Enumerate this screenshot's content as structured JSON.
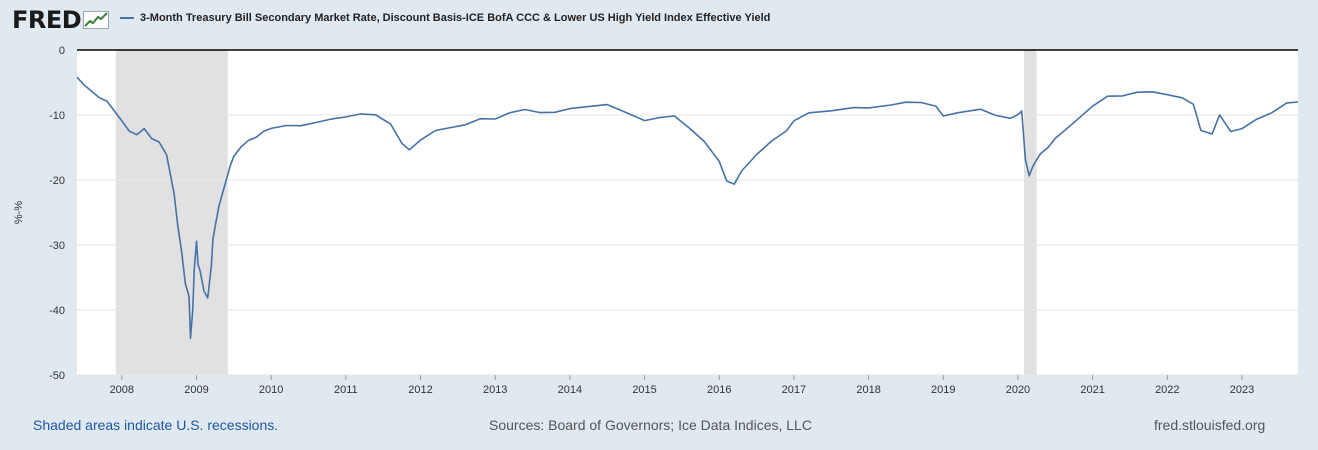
{
  "logo": {
    "text": "FRED"
  },
  "legend": {
    "label": "3-Month Treasury Bill Secondary Market Rate, Discount Basis-ICE BofA CCC & Lower US High Yield Index Effective Yield"
  },
  "footer": {
    "recessions_note": "Shaded areas indicate U.S. recessions.",
    "sources": "Sources: Board of Governors; Ice Data Indices, LLC",
    "site": "fred.stlouisfed.org"
  },
  "colors": {
    "line": "#4572a7",
    "recession": "#e1e1e1",
    "background": "#e1e9f0",
    "plot": "#ffffff",
    "grid": "#e6e6e6"
  },
  "chart_data": {
    "type": "line",
    "title": "3-Month Treasury Bill Secondary Market Rate, Discount Basis-ICE BofA CCC & Lower US High Yield Index Effective Yield",
    "xlabel": "",
    "ylabel": "%-%",
    "xlim": [
      2007.4,
      2023.75
    ],
    "ylim": [
      -50,
      0
    ],
    "yticks": [
      0,
      -10,
      -20,
      -30,
      -40,
      -50
    ],
    "ytick_labels": [
      "0",
      "-10",
      "-20",
      "-30",
      "-40",
      "-50"
    ],
    "xticks": [
      2008,
      2009,
      2010,
      2011,
      2012,
      2013,
      2014,
      2015,
      2016,
      2017,
      2018,
      2019,
      2020,
      2021,
      2022,
      2023
    ],
    "xtick_labels": [
      "2008",
      "2009",
      "2010",
      "2011",
      "2012",
      "2013",
      "2014",
      "2015",
      "2016",
      "2017",
      "2018",
      "2019",
      "2020",
      "2021",
      "2022",
      "2023"
    ],
    "recessions": [
      [
        2007.92,
        2009.42
      ],
      [
        2020.08,
        2020.25
      ]
    ],
    "grid": true,
    "series": [
      {
        "name": "3-Month Treasury Bill Secondary Market Rate, Discount Basis-ICE BofA CCC & Lower US High Yield Index Effective Yield",
        "x": [
          2007.4,
          2007.5,
          2007.6,
          2007.7,
          2007.8,
          2007.9,
          2008.0,
          2008.1,
          2008.2,
          2008.3,
          2008.4,
          2008.5,
          2008.6,
          2008.7,
          2008.75,
          2008.8,
          2008.85,
          2008.9,
          2008.92,
          2008.95,
          2008.97,
          2009.0,
          2009.02,
          2009.05,
          2009.1,
          2009.15,
          2009.2,
          2009.22,
          2009.25,
          2009.3,
          2009.35,
          2009.4,
          2009.45,
          2009.5,
          2009.6,
          2009.7,
          2009.8,
          2009.9,
          2010.0,
          2010.2,
          2010.4,
          2010.6,
          2010.8,
          2011.0,
          2011.2,
          2011.4,
          2011.6,
          2011.75,
          2011.85,
          2012.0,
          2012.2,
          2012.4,
          2012.6,
          2012.8,
          2013.0,
          2013.2,
          2013.4,
          2013.6,
          2013.8,
          2014.0,
          2014.2,
          2014.5,
          2014.7,
          2014.9,
          2015.0,
          2015.2,
          2015.4,
          2015.6,
          2015.8,
          2016.0,
          2016.1,
          2016.2,
          2016.3,
          2016.5,
          2016.7,
          2016.9,
          2017.0,
          2017.2,
          2017.5,
          2017.8,
          2018.0,
          2018.3,
          2018.5,
          2018.7,
          2018.9,
          2019.0,
          2019.2,
          2019.5,
          2019.7,
          2019.9,
          2020.0,
          2020.05,
          2020.1,
          2020.15,
          2020.2,
          2020.25,
          2020.3,
          2020.4,
          2020.5,
          2020.6,
          2020.8,
          2021.0,
          2021.2,
          2021.4,
          2021.6,
          2021.8,
          2022.0,
          2022.2,
          2022.35,
          2022.45,
          2022.6,
          2022.7,
          2022.85,
          2023.0,
          2023.2,
          2023.4,
          2023.6,
          2023.75
        ],
        "y": [
          -4.2,
          -5.5,
          -6.5,
          -7.5,
          -8.0,
          -9.5,
          -11.0,
          -12.5,
          -13.0,
          -12.0,
          -13.5,
          -14.0,
          -16.0,
          -22.0,
          -27.0,
          -31.0,
          -36.0,
          -38.0,
          -44.5,
          -40.0,
          -34.0,
          -29.5,
          -33.0,
          -34.0,
          -37.0,
          -38.0,
          -33.0,
          -29.0,
          -27.0,
          -24.0,
          -22.0,
          -20.0,
          -18.0,
          -16.5,
          -15.0,
          -14.0,
          -13.5,
          -12.5,
          -12.0,
          -11.5,
          -11.5,
          -11.0,
          -10.5,
          -10.2,
          -9.8,
          -10.0,
          -11.5,
          -14.5,
          -15.5,
          -14.0,
          -12.5,
          -12.0,
          -11.5,
          -10.5,
          -10.5,
          -9.5,
          -9.0,
          -9.5,
          -9.5,
          -9.0,
          -8.8,
          -8.5,
          -9.5,
          -10.5,
          -11.0,
          -10.5,
          -10.2,
          -12.0,
          -14.0,
          -17.0,
          -20.0,
          -20.5,
          -18.5,
          -16.0,
          -14.0,
          -12.5,
          -11.0,
          -9.8,
          -9.5,
          -9.0,
          -9.0,
          -8.5,
          -8.0,
          -8.0,
          -8.5,
          -10.0,
          -9.5,
          -9.0,
          -10.0,
          -10.5,
          -10.0,
          -9.5,
          -17.0,
          -19.5,
          -18.0,
          -17.0,
          -16.0,
          -15.0,
          -13.5,
          -12.5,
          -10.5,
          -8.5,
          -7.0,
          -7.0,
          -6.5,
          -6.5,
          -7.0,
          -7.5,
          -8.5,
          -12.5,
          -13.0,
          -10.0,
          -12.5,
          -12.0,
          -10.5,
          -9.5,
          -8.0,
          -8.0
        ]
      }
    ]
  }
}
